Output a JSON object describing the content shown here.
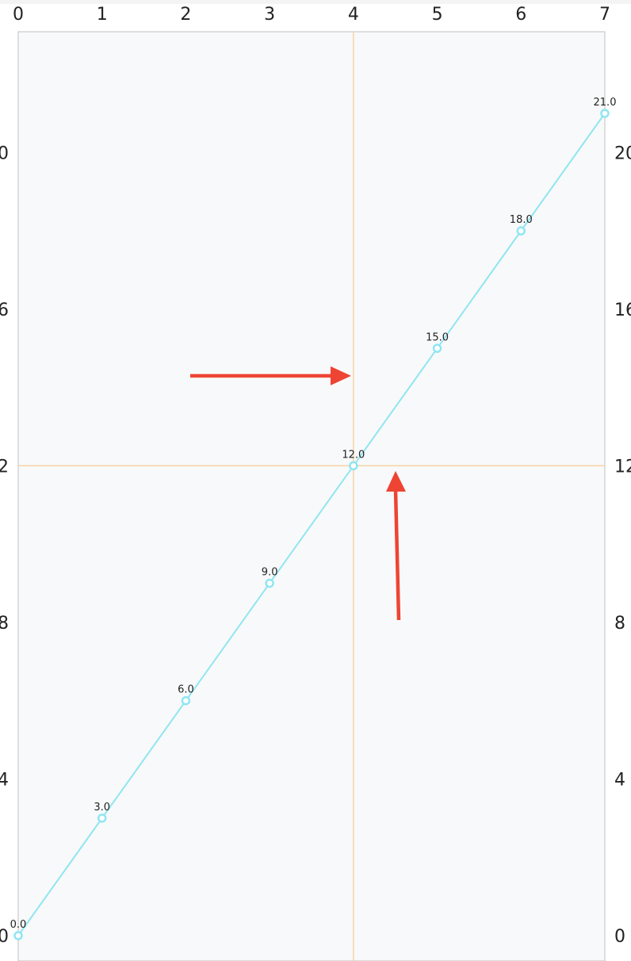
{
  "chart_data": {
    "type": "line",
    "title": "",
    "xlabel": "",
    "ylabel": "",
    "x": [
      0,
      1,
      2,
      3,
      4,
      5,
      6,
      7
    ],
    "series": [
      {
        "values": [
          0,
          3,
          6,
          9,
          12,
          15,
          18,
          21
        ],
        "data_labels": [
          "0.0",
          "3.0",
          "6.0",
          "9.0",
          "12.0",
          "15.0",
          "18.0",
          "21.0"
        ],
        "color": "#8fe6f2"
      }
    ],
    "xlim": [
      0,
      7
    ],
    "ylim": [
      0,
      23.2
    ],
    "x_ticks": [
      0,
      1,
      2,
      3,
      4,
      5,
      6,
      7
    ],
    "x_tick_labels": [
      "0",
      "1",
      "2",
      "3",
      "4",
      "5",
      "6",
      "7"
    ],
    "y_ticks": [
      0,
      4,
      8,
      12,
      16,
      20
    ],
    "y_tick_labels": [
      "0",
      "4",
      "8",
      "12",
      "16",
      "20"
    ],
    "x_axis_position": "top",
    "y_axis_position": "both",
    "grid": false,
    "reference_lines": {
      "x": 4,
      "y": 12,
      "color": "#f6d3a4"
    },
    "annotations": [
      {
        "type": "arrow",
        "points_to": "x-reference-line",
        "color": "#ee4433"
      },
      {
        "type": "arrow",
        "points_to": "y-reference-line",
        "color": "#ee4433"
      }
    ],
    "colors": {
      "plot_background": "#f8f9fa",
      "axis_line": "#c0c0c0",
      "point_fill": "#ffffff"
    }
  }
}
